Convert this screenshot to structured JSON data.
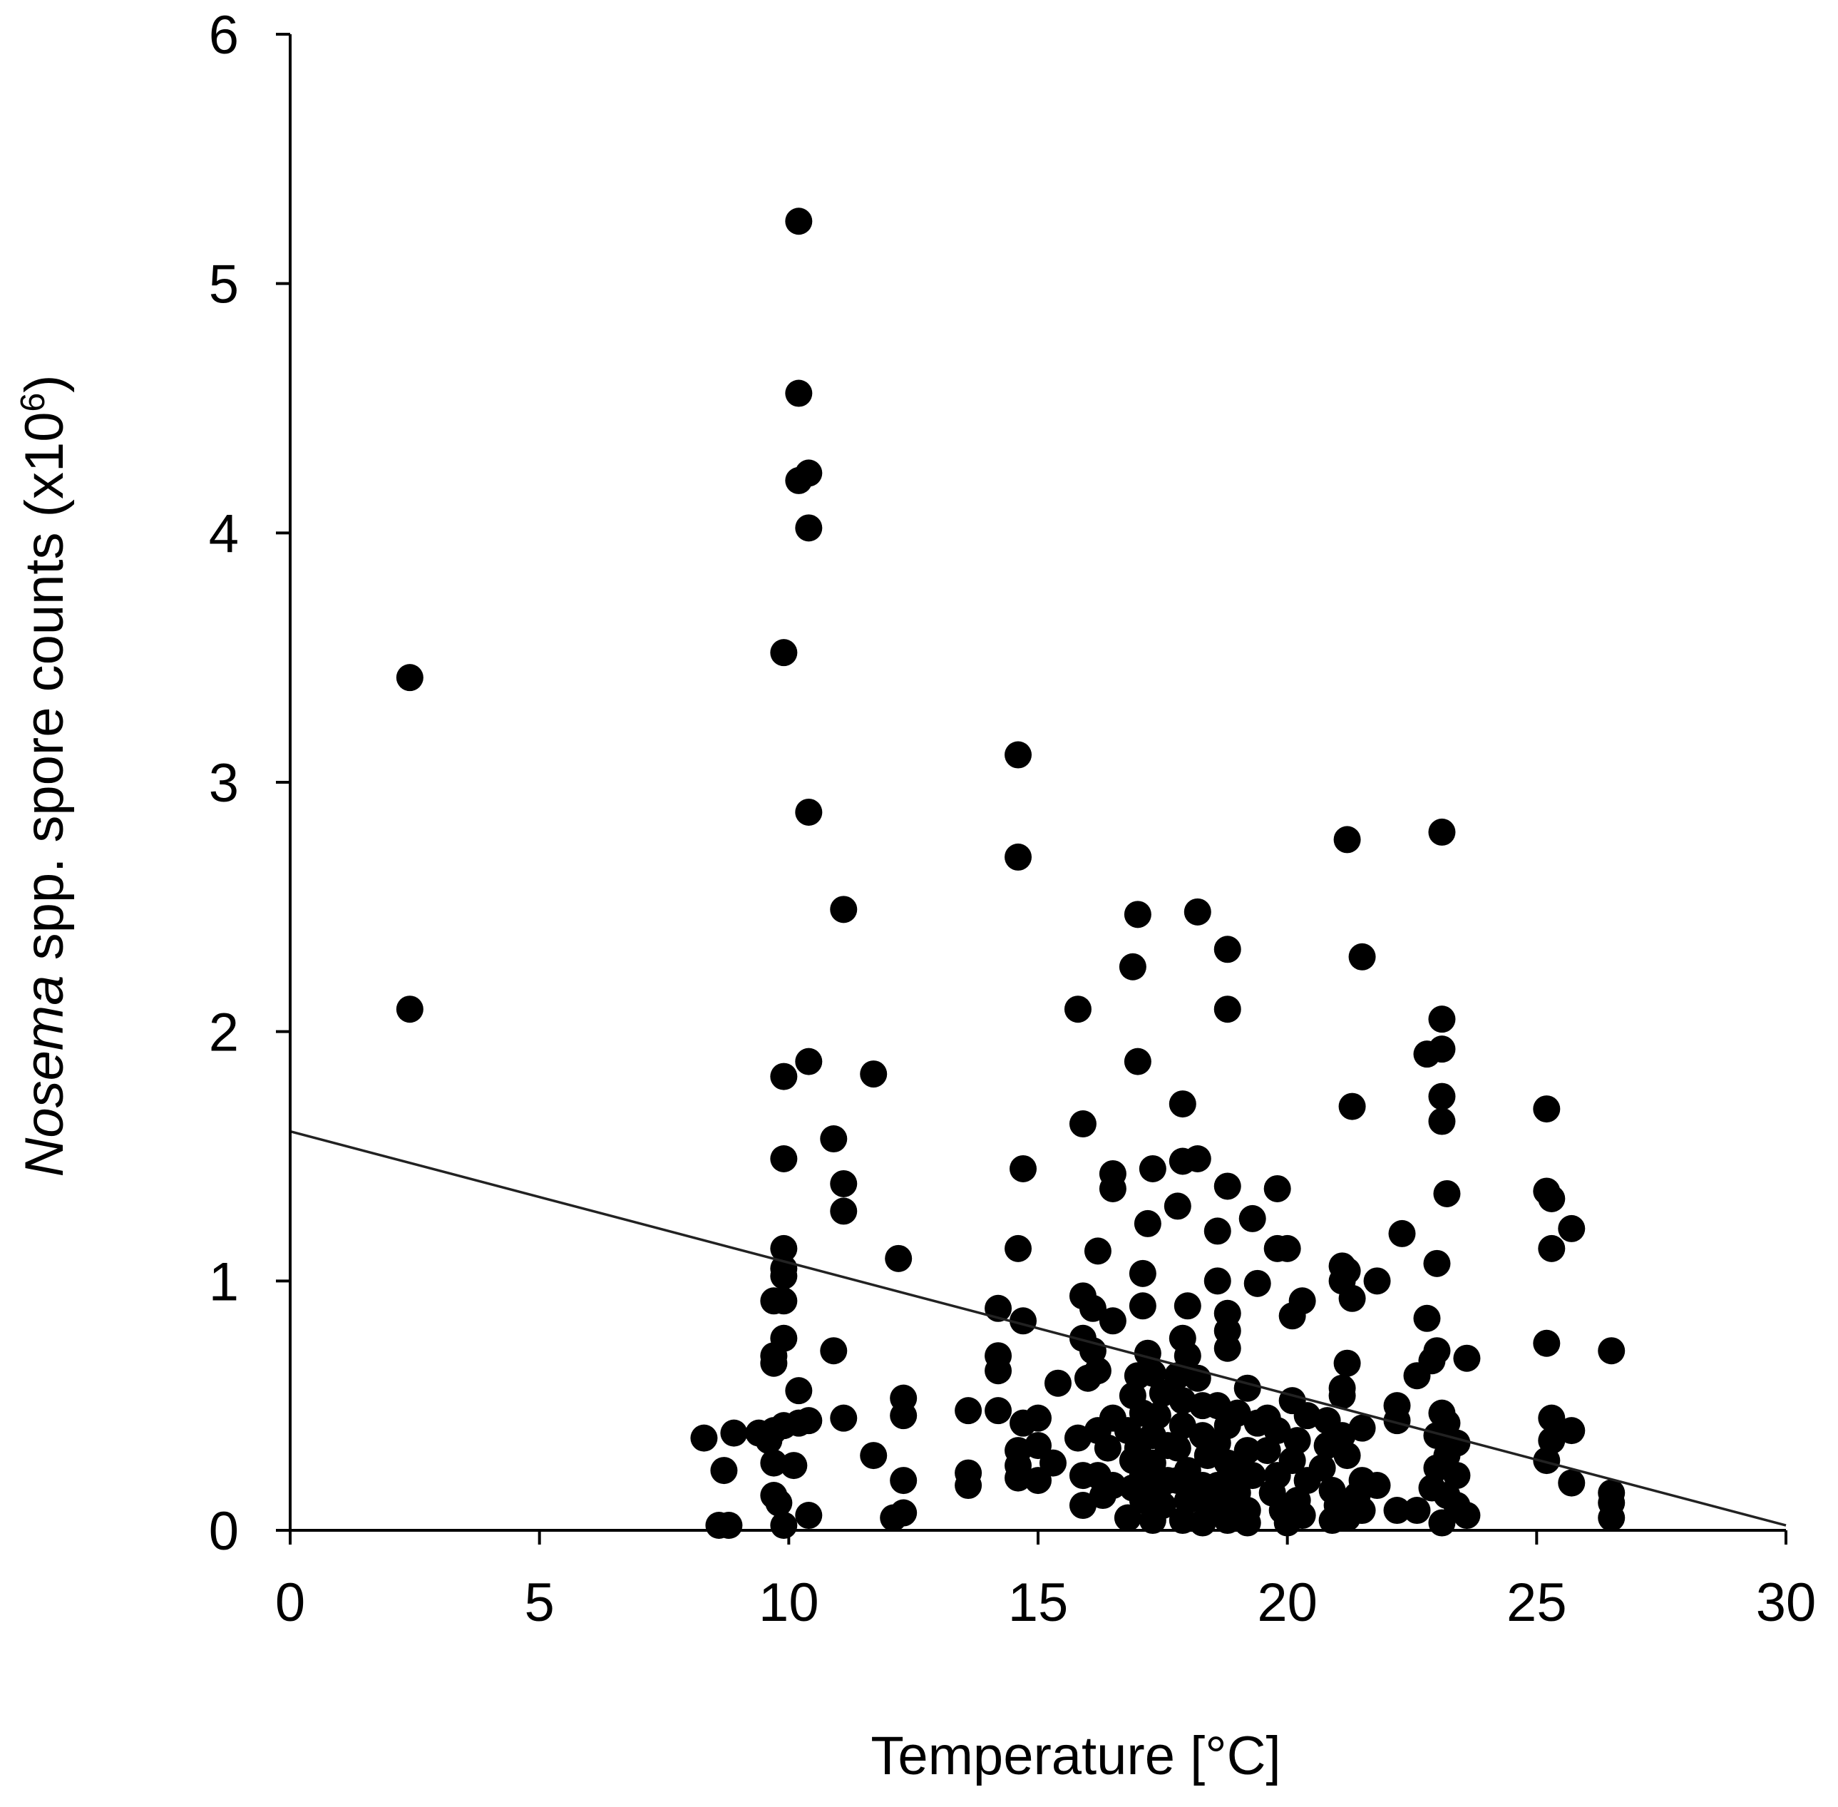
{
  "chart_data": {
    "type": "scatter",
    "title": "",
    "xlabel": "Temperature [°C]",
    "ylabel": {
      "italic_part": "Nosema",
      "rest": " spp. spore counts (x10",
      "superscript": "6",
      "close": ")"
    },
    "xlim": [
      0,
      30
    ],
    "ylim": [
      0,
      6
    ],
    "x_ticks": [
      "0",
      "5",
      "10",
      "15",
      "20",
      "25",
      "30"
    ],
    "y_ticks": [
      "0",
      "1",
      "2",
      "3",
      "4",
      "5",
      "6"
    ],
    "grid": false,
    "legend": "none",
    "point_color": "#000000",
    "trendline": {
      "x": [
        0,
        30
      ],
      "y": [
        1.6,
        0.02
      ]
    },
    "points": [
      [
        2.4,
        3.42
      ],
      [
        2.4,
        2.09
      ],
      [
        10.2,
        5.25
      ],
      [
        10.2,
        4.56
      ],
      [
        10.4,
        4.24
      ],
      [
        10.2,
        4.21
      ],
      [
        10.4,
        4.02
      ],
      [
        9.9,
        3.52
      ],
      [
        10.4,
        2.88
      ],
      [
        11.1,
        2.49
      ],
      [
        10.4,
        1.88
      ],
      [
        11.7,
        1.83
      ],
      [
        9.9,
        1.82
      ],
      [
        10.9,
        1.57
      ],
      [
        9.9,
        1.49
      ],
      [
        11.1,
        1.39
      ],
      [
        11.1,
        1.28
      ],
      [
        9.9,
        1.13
      ],
      [
        12.2,
        1.09
      ],
      [
        9.9,
        1.05
      ],
      [
        9.9,
        1.02
      ],
      [
        9.7,
        0.92
      ],
      [
        9.9,
        0.92
      ],
      [
        9.9,
        0.77
      ],
      [
        10.9,
        0.72
      ],
      [
        9.7,
        0.7
      ],
      [
        9.7,
        0.67
      ],
      [
        10.2,
        0.56
      ],
      [
        12.3,
        0.53
      ],
      [
        12.3,
        0.46
      ],
      [
        11.1,
        0.45
      ],
      [
        10.2,
        0.43
      ],
      [
        10.4,
        0.44
      ],
      [
        9.9,
        0.42
      ],
      [
        9.7,
        0.4
      ],
      [
        9.4,
        0.39
      ],
      [
        8.9,
        0.39
      ],
      [
        8.3,
        0.37
      ],
      [
        9.6,
        0.36
      ],
      [
        11.7,
        0.3
      ],
      [
        9.7,
        0.27
      ],
      [
        10.1,
        0.26
      ],
      [
        8.7,
        0.24
      ],
      [
        12.3,
        0.2
      ],
      [
        9.7,
        0.14
      ],
      [
        9.8,
        0.11
      ],
      [
        10.4,
        0.06
      ],
      [
        12.3,
        0.07
      ],
      [
        12.1,
        0.05
      ],
      [
        8.6,
        0.02
      ],
      [
        8.8,
        0.02
      ],
      [
        9.9,
        0.02
      ],
      [
        14.6,
        3.11
      ],
      [
        14.6,
        2.7
      ],
      [
        14.7,
        1.45
      ],
      [
        14.6,
        1.13
      ],
      [
        14.2,
        0.89
      ],
      [
        14.7,
        0.84
      ],
      [
        14.2,
        0.7
      ],
      [
        14.2,
        0.64
      ],
      [
        13.6,
        0.48
      ],
      [
        14.2,
        0.48
      ],
      [
        15.0,
        0.45
      ],
      [
        14.7,
        0.43
      ],
      [
        14.6,
        0.32
      ],
      [
        15.0,
        0.34
      ],
      [
        14.6,
        0.26
      ],
      [
        15.3,
        0.27
      ],
      [
        15.0,
        0.2
      ],
      [
        14.6,
        0.21
      ],
      [
        13.6,
        0.23
      ],
      [
        13.6,
        0.18
      ],
      [
        15.4,
        0.59
      ],
      [
        15.8,
        2.09
      ],
      [
        15.9,
        1.63
      ],
      [
        16.5,
        1.43
      ],
      [
        16.5,
        1.37
      ],
      [
        16.2,
        1.12
      ],
      [
        15.9,
        0.94
      ],
      [
        16.1,
        0.89
      ],
      [
        16.5,
        0.84
      ],
      [
        15.9,
        0.77
      ],
      [
        16.1,
        0.72
      ],
      [
        16.2,
        0.64
      ],
      [
        16.0,
        0.61
      ],
      [
        16.5,
        0.45
      ],
      [
        16.2,
        0.4
      ],
      [
        15.8,
        0.37
      ],
      [
        16.4,
        0.33
      ],
      [
        15.9,
        0.22
      ],
      [
        16.2,
        0.22
      ],
      [
        16.5,
        0.18
      ],
      [
        15.9,
        0.1
      ],
      [
        16.3,
        0.14
      ],
      [
        17.0,
        2.47
      ],
      [
        16.9,
        2.26
      ],
      [
        17.0,
        1.88
      ],
      [
        17.3,
        1.45
      ],
      [
        17.2,
        1.23
      ],
      [
        17.1,
        1.03
      ],
      [
        17.1,
        0.9
      ],
      [
        17.2,
        0.71
      ],
      [
        17.0,
        0.62
      ],
      [
        17.3,
        0.63
      ],
      [
        16.9,
        0.54
      ],
      [
        17.5,
        0.55
      ],
      [
        17.1,
        0.47
      ],
      [
        17.4,
        0.46
      ],
      [
        16.8,
        0.4
      ],
      [
        17.3,
        0.38
      ],
      [
        17.0,
        0.33
      ],
      [
        17.6,
        0.34
      ],
      [
        16.9,
        0.28
      ],
      [
        17.3,
        0.27
      ],
      [
        17.1,
        0.22
      ],
      [
        17.6,
        0.2
      ],
      [
        16.9,
        0.17
      ],
      [
        17.4,
        0.16
      ],
      [
        17.1,
        0.12
      ],
      [
        17.5,
        0.1
      ],
      [
        16.8,
        0.05
      ],
      [
        17.3,
        0.04
      ],
      [
        18.2,
        2.48
      ],
      [
        17.9,
        1.71
      ],
      [
        18.2,
        1.49
      ],
      [
        17.9,
        1.48
      ],
      [
        17.8,
        1.3
      ],
      [
        18.0,
        0.9
      ],
      [
        17.9,
        0.77
      ],
      [
        18.0,
        0.7
      ],
      [
        17.8,
        0.62
      ],
      [
        18.2,
        0.61
      ],
      [
        17.9,
        0.52
      ],
      [
        18.3,
        0.5
      ],
      [
        17.9,
        0.42
      ],
      [
        18.3,
        0.38
      ],
      [
        17.8,
        0.33
      ],
      [
        18.4,
        0.3
      ],
      [
        18.0,
        0.24
      ],
      [
        17.8,
        0.2
      ],
      [
        18.3,
        0.18
      ],
      [
        18.0,
        0.12
      ],
      [
        18.4,
        0.1
      ],
      [
        17.9,
        0.04
      ],
      [
        18.3,
        0.03
      ],
      [
        18.8,
        2.33
      ],
      [
        18.8,
        2.09
      ],
      [
        18.8,
        1.38
      ],
      [
        18.6,
        1.2
      ],
      [
        18.6,
        1.0
      ],
      [
        18.8,
        0.87
      ],
      [
        18.8,
        0.8
      ],
      [
        18.8,
        0.73
      ],
      [
        19.2,
        0.57
      ],
      [
        18.6,
        0.5
      ],
      [
        19.0,
        0.47
      ],
      [
        18.8,
        0.42
      ],
      [
        19.4,
        0.43
      ],
      [
        18.6,
        0.35
      ],
      [
        19.2,
        0.32
      ],
      [
        18.8,
        0.27
      ],
      [
        19.0,
        0.24
      ],
      [
        19.3,
        0.22
      ],
      [
        18.6,
        0.18
      ],
      [
        19.0,
        0.15
      ],
      [
        18.7,
        0.1
      ],
      [
        19.2,
        0.08
      ],
      [
        18.8,
        0.04
      ],
      [
        19.2,
        0.03
      ],
      [
        19.8,
        1.37
      ],
      [
        19.3,
        1.25
      ],
      [
        19.8,
        1.13
      ],
      [
        20.0,
        1.13
      ],
      [
        19.4,
        0.99
      ],
      [
        20.3,
        0.92
      ],
      [
        20.1,
        0.86
      ],
      [
        20.1,
        0.52
      ],
      [
        19.6,
        0.45
      ],
      [
        20.4,
        0.46
      ],
      [
        19.8,
        0.4
      ],
      [
        20.2,
        0.36
      ],
      [
        19.6,
        0.32
      ],
      [
        20.1,
        0.28
      ],
      [
        19.8,
        0.22
      ],
      [
        20.4,
        0.2
      ],
      [
        19.7,
        0.15
      ],
      [
        20.2,
        0.12
      ],
      [
        19.9,
        0.08
      ],
      [
        20.3,
        0.06
      ],
      [
        20.0,
        0.03
      ],
      [
        21.2,
        2.77
      ],
      [
        21.5,
        2.3
      ],
      [
        21.3,
        1.7
      ],
      [
        21.1,
        1.06
      ],
      [
        21.2,
        1.04
      ],
      [
        21.1,
        1.0
      ],
      [
        21.3,
        0.93
      ],
      [
        21.2,
        0.67
      ],
      [
        21.1,
        0.57
      ],
      [
        21.1,
        0.54
      ],
      [
        20.8,
        0.44
      ],
      [
        21.5,
        0.41
      ],
      [
        21.1,
        0.38
      ],
      [
        20.8,
        0.34
      ],
      [
        21.2,
        0.3
      ],
      [
        20.7,
        0.25
      ],
      [
        21.5,
        0.2
      ],
      [
        20.9,
        0.16
      ],
      [
        21.4,
        0.14
      ],
      [
        21.0,
        0.1
      ],
      [
        21.5,
        0.08
      ],
      [
        20.9,
        0.04
      ],
      [
        21.2,
        0.05
      ],
      [
        21.8,
        1.0
      ],
      [
        22.3,
        1.19
      ],
      [
        21.8,
        0.18
      ],
      [
        22.2,
        0.5
      ],
      [
        22.2,
        0.44
      ],
      [
        22.6,
        0.62
      ],
      [
        22.2,
        0.08
      ],
      [
        23.1,
        2.8
      ],
      [
        23.1,
        2.05
      ],
      [
        23.1,
        1.93
      ],
      [
        22.8,
        1.91
      ],
      [
        23.1,
        1.74
      ],
      [
        23.1,
        1.64
      ],
      [
        23.2,
        1.35
      ],
      [
        23.0,
        1.07
      ],
      [
        22.8,
        0.85
      ],
      [
        23.0,
        0.72
      ],
      [
        22.9,
        0.68
      ],
      [
        23.6,
        0.69
      ],
      [
        23.1,
        0.47
      ],
      [
        23.2,
        0.43
      ],
      [
        23.0,
        0.38
      ],
      [
        23.4,
        0.35
      ],
      [
        23.2,
        0.3
      ],
      [
        23.0,
        0.25
      ],
      [
        23.4,
        0.22
      ],
      [
        22.9,
        0.17
      ],
      [
        23.2,
        0.14
      ],
      [
        23.4,
        0.1
      ],
      [
        23.6,
        0.06
      ],
      [
        23.1,
        0.03
      ],
      [
        22.6,
        0.08
      ],
      [
        25.2,
        1.69
      ],
      [
        25.2,
        1.36
      ],
      [
        25.3,
        1.33
      ],
      [
        25.7,
        1.21
      ],
      [
        25.3,
        1.13
      ],
      [
        25.2,
        0.75
      ],
      [
        25.3,
        0.45
      ],
      [
        25.7,
        0.4
      ],
      [
        25.3,
        0.36
      ],
      [
        25.2,
        0.28
      ],
      [
        25.7,
        0.19
      ],
      [
        26.5,
        0.72
      ],
      [
        26.5,
        0.15
      ],
      [
        26.5,
        0.11
      ],
      [
        26.5,
        0.05
      ]
    ]
  }
}
